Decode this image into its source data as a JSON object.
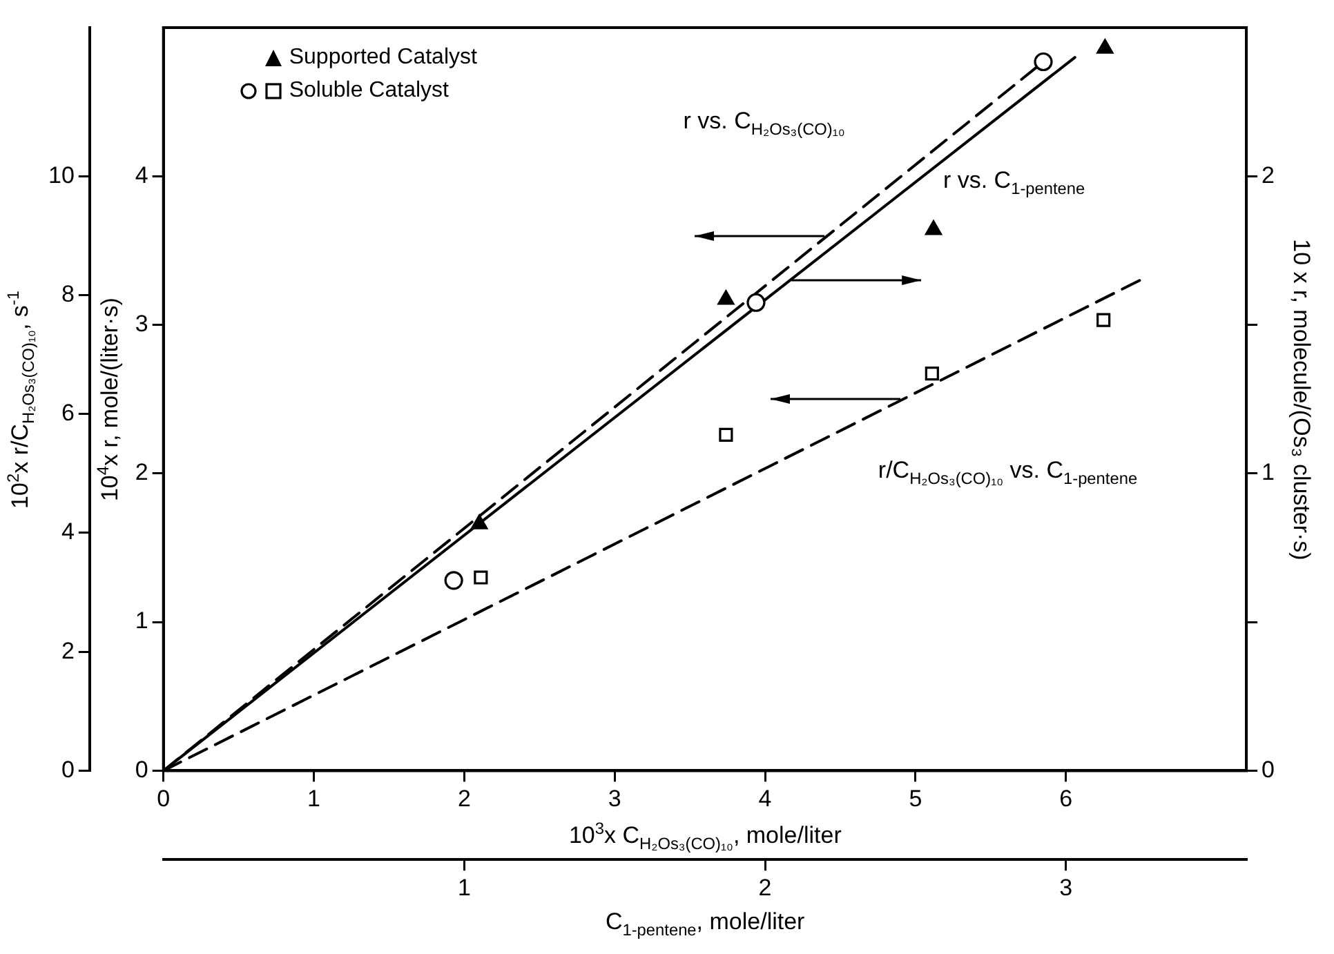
{
  "chart_data": {
    "type": "scatter",
    "xlabel": "10$^{3}$x C$_{H₂Os₃(CO)₁₀}$, mole/liter",
    "x2label": "C$_{1-pentene}$, mole/liter",
    "ylabel": "10$^{2}$x r/C$_{H₂Os₃(CO)₁₀}$, s$^{-1}$",
    "y3label": "10$^{4}$x r, mole/(liter·s)",
    "y2label": "10 x r, molecule/(Os₃ cluster·s)",
    "xlim": [
      0,
      7.2
    ],
    "xticks": [
      0,
      1,
      2,
      3,
      4,
      5,
      6
    ],
    "x2lim": [
      0,
      3.6
    ],
    "x2ticks": [
      1,
      2,
      3
    ],
    "ylim": [
      0,
      12.5
    ],
    "yticks": [
      0,
      2,
      4,
      6,
      8,
      10
    ],
    "y3lim": [
      0,
      5
    ],
    "y3ticks": [
      0,
      1,
      2,
      3,
      4
    ],
    "y2lim": [
      0,
      2.5
    ],
    "y2ticks": [
      0,
      {
        "value": 0.5,
        "label": null
      },
      1,
      {
        "value": 1.5,
        "label": null
      },
      2
    ],
    "grid": false,
    "legend": "top left",
    "series": [
      {
        "name": "Supported Catalyst",
        "marker": "triangle",
        "color": "#000000",
        "axis": "y3",
        "x": [
          2.1,
          3.74,
          5.12,
          6.26
        ],
        "values": [
          1.66,
          3.17,
          3.64,
          4.86
        ]
      },
      {
        "name": "Soluble Catalyst",
        "marker": "square",
        "color": "#000000",
        "x": [
          2.11,
          3.74,
          5.11,
          6.25
        ],
        "values": [
          3.25,
          5.65,
          6.68,
          7.58
        ]
      },
      {
        "marker": "circle",
        "color": "#000000",
        "axis": "y3",
        "x": [
          1.93,
          3.94,
          5.85
        ],
        "values": [
          1.28,
          3.15,
          4.77
        ]
      },
      {
        "name": "r vs. C$_{H₂Os₃(CO)₁₀}$",
        "type": "line",
        "marker": "none",
        "line_style": "dashed",
        "color": "#000000",
        "axis": "y3",
        "x": [
          0,
          5.85
        ],
        "values": [
          0,
          4.77
        ]
      },
      {
        "name": "r vs. C$_{1-pentene}$",
        "type": "line",
        "marker": "none",
        "line_style": "solid",
        "color": "#000000",
        "axis": "y2",
        "x": [
          0,
          6.06
        ],
        "values": [
          0,
          2.4
        ]
      },
      {
        "name": "r/C$_{H₂Os₃(CO)₁₀}$ vs. C$_{1-pentene}$",
        "type": "line",
        "marker": "none",
        "line_style": "dashed",
        "color": "#000000",
        "x": [
          0,
          6.5
        ],
        "values": [
          0,
          8.26
        ]
      }
    ]
  }
}
